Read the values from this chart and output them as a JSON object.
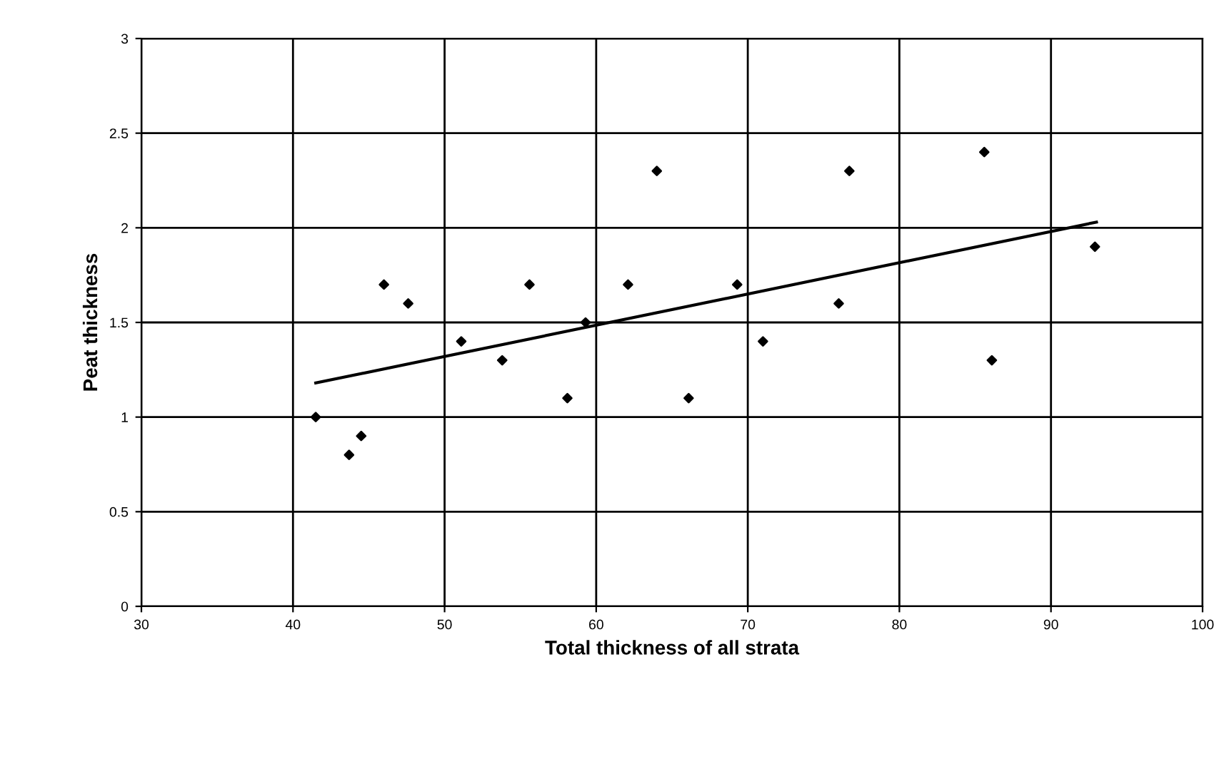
{
  "chart_data": {
    "type": "scatter",
    "xlabel": "Total thickness of all strata",
    "ylabel": "Peat thickness",
    "xlim": [
      30,
      100
    ],
    "xticks": [
      30,
      40,
      50,
      60,
      70,
      80,
      90,
      100
    ],
    "ylim": [
      0,
      3
    ],
    "yticks": [
      0,
      0.5,
      1,
      1.5,
      2,
      2.5,
      3
    ],
    "grid": true,
    "marker": "diamond",
    "series": [
      {
        "color": "#000000",
        "x": [
          41.5,
          43.7,
          44.5,
          46,
          47.6,
          51.1,
          53.8,
          55.6,
          58.1,
          59.3,
          62.1,
          64,
          66.1,
          69.3,
          71,
          76,
          76.7,
          85.6,
          86.1,
          92.9
        ],
        "values": [
          1.0,
          0.8,
          0.9,
          1.7,
          1.6,
          1.4,
          1.3,
          1.7,
          1.1,
          1.5,
          1.7,
          2.3,
          1.1,
          1.7,
          1.4,
          1.6,
          2.3,
          2.4,
          1.3,
          1.9
        ]
      },
      {
        "type": "line",
        "color": "#000000",
        "marker": "none",
        "x": [
          41.5,
          93
        ],
        "values": [
          1.18,
          2.03
        ]
      }
    ]
  }
}
